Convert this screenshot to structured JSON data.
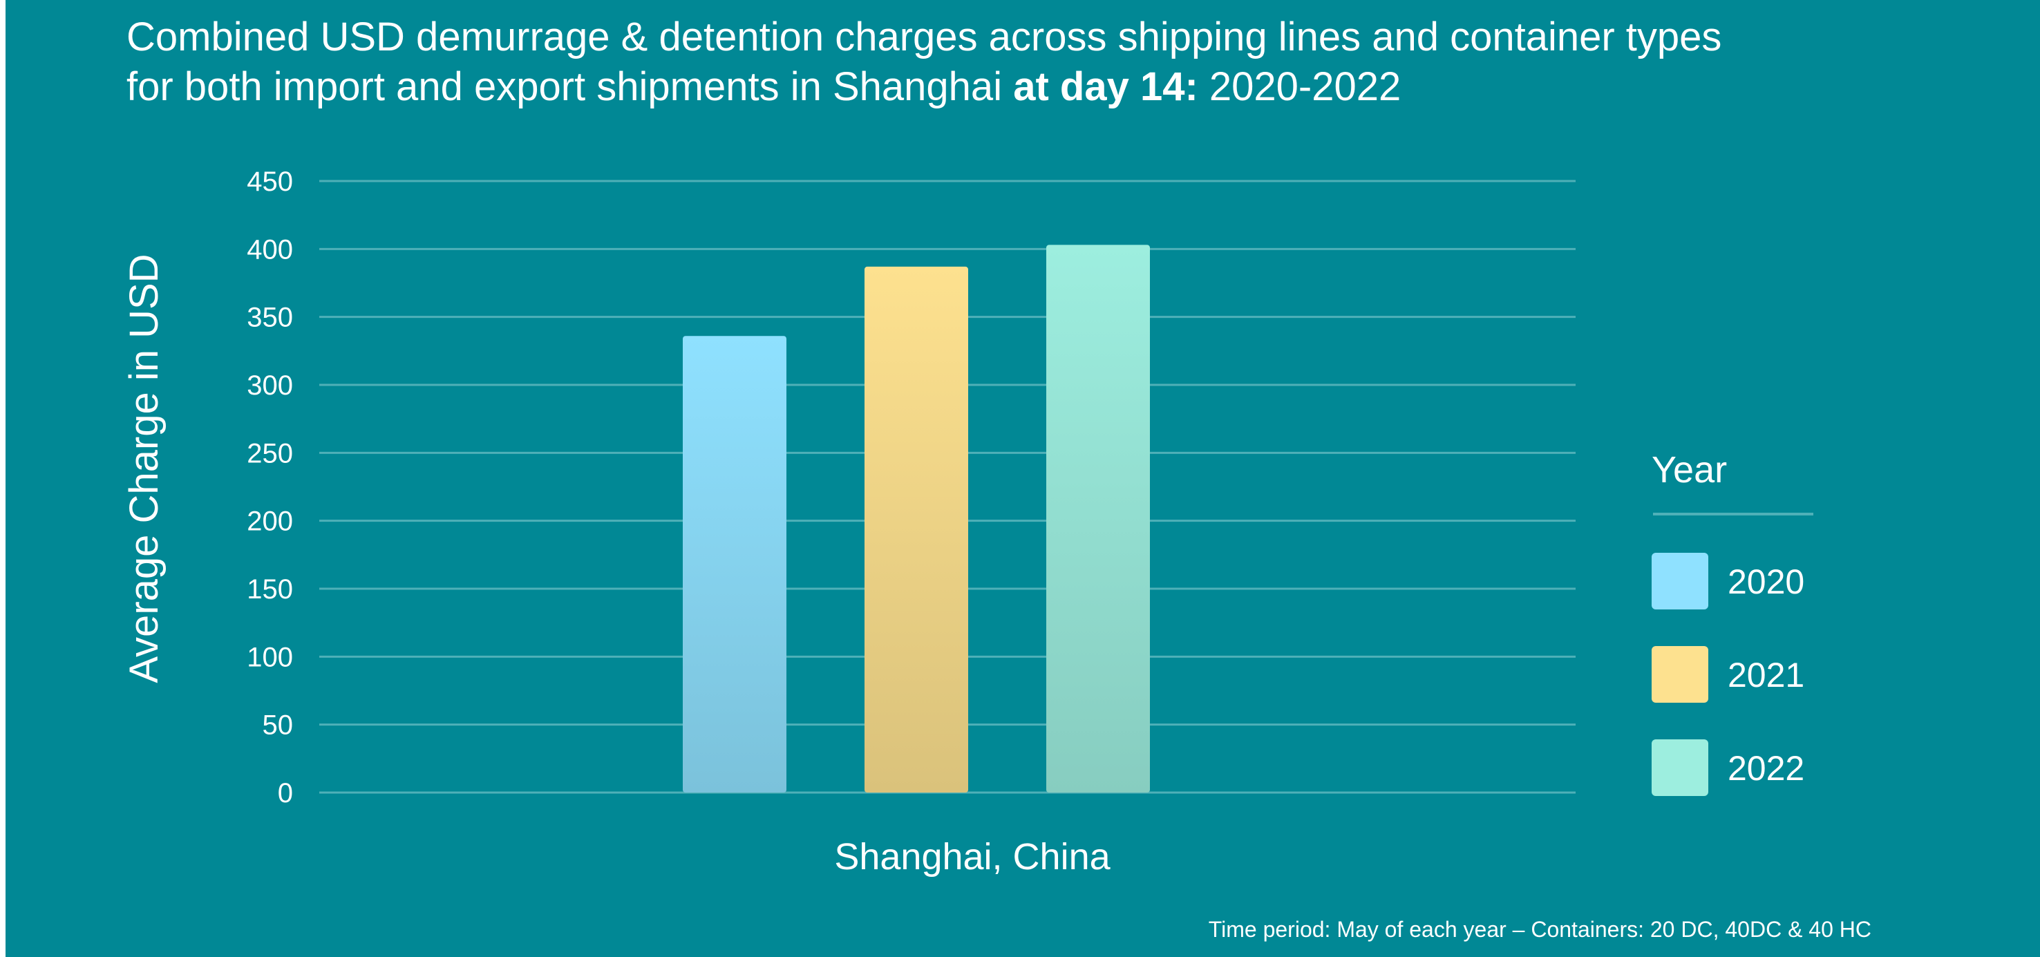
{
  "title": {
    "line1": "Combined USD demurrage & detention charges across shipping lines and container types",
    "line2_prefix": "for both import and export shipments in Shanghai ",
    "line2_bold": "at day 14:",
    "line2_suffix": " 2020-2022"
  },
  "footnote": "Time period: May of each year – Containers: 20 DC, 40DC & 40 HC",
  "colors": {
    "background": "#018895",
    "gridline": "#4fb0b8",
    "series_2020": "#8fe1ff",
    "series_2021": "#fde18f",
    "series_2022": "#9deedf"
  },
  "chart_data": {
    "type": "bar",
    "categories": [
      "Shanghai, China"
    ],
    "series": [
      {
        "name": "2020",
        "values": [
          336
        ],
        "color": "#8fe1ff"
      },
      {
        "name": "2021",
        "values": [
          387
        ],
        "color": "#fde18f"
      },
      {
        "name": "2022",
        "values": [
          403
        ],
        "color": "#9deedf"
      }
    ],
    "ylabel": "Average  Charge in USD",
    "xlabel": "",
    "ylim": [
      0,
      450
    ],
    "yticks": [
      0,
      50,
      100,
      150,
      200,
      250,
      300,
      350,
      400,
      450
    ],
    "grid": true,
    "legend": {
      "title": "Year",
      "placement": "right"
    }
  }
}
